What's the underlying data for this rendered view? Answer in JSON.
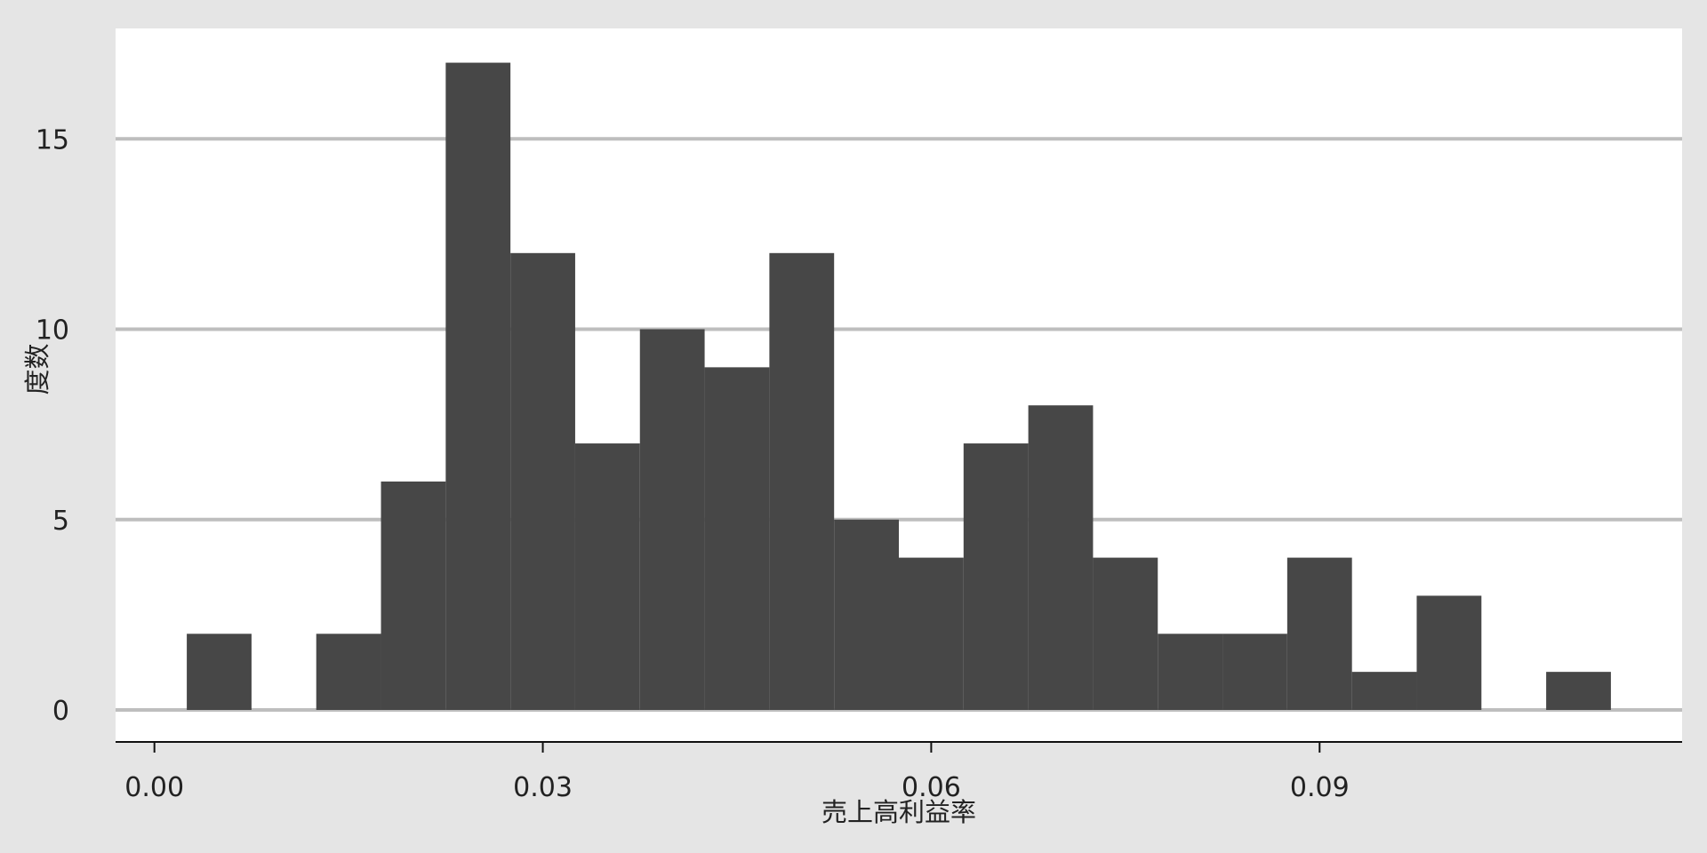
{
  "chart_data": {
    "type": "bar",
    "subtype": "histogram",
    "xlabel": "売上高利益率",
    "ylabel": "度数",
    "bin_width": 0.005,
    "bins": [
      {
        "start": 0.0025,
        "end": 0.0075,
        "count": 2
      },
      {
        "start": 0.0125,
        "end": 0.0175,
        "count": 2
      },
      {
        "start": 0.0175,
        "end": 0.0225,
        "count": 6
      },
      {
        "start": 0.0225,
        "end": 0.0275,
        "count": 17
      },
      {
        "start": 0.0275,
        "end": 0.0325,
        "count": 12
      },
      {
        "start": 0.0325,
        "end": 0.0375,
        "count": 7
      },
      {
        "start": 0.0375,
        "end": 0.0425,
        "count": 10
      },
      {
        "start": 0.0425,
        "end": 0.0475,
        "count": 9
      },
      {
        "start": 0.0475,
        "end": 0.0525,
        "count": 12
      },
      {
        "start": 0.0525,
        "end": 0.0575,
        "count": 5
      },
      {
        "start": 0.0575,
        "end": 0.0625,
        "count": 4
      },
      {
        "start": 0.0625,
        "end": 0.0675,
        "count": 7
      },
      {
        "start": 0.0675,
        "end": 0.0725,
        "count": 8
      },
      {
        "start": 0.0725,
        "end": 0.0775,
        "count": 4
      },
      {
        "start": 0.0775,
        "end": 0.0825,
        "count": 2
      },
      {
        "start": 0.0825,
        "end": 0.0875,
        "count": 2
      },
      {
        "start": 0.0875,
        "end": 0.0925,
        "count": 4
      },
      {
        "start": 0.0925,
        "end": 0.0975,
        "count": 1
      },
      {
        "start": 0.0975,
        "end": 0.1025,
        "count": 3
      },
      {
        "start": 0.1075,
        "end": 0.1125,
        "count": 1
      }
    ],
    "xticks": [
      "0.00",
      "0.03",
      "0.06",
      "0.09"
    ],
    "yticks": [
      "0",
      "5",
      "10",
      "15"
    ],
    "xlim": [
      -0.003,
      0.118
    ],
    "ylim": [
      0,
      17.9
    ],
    "grid": "horizontal",
    "colors": {
      "bar": "#474747",
      "panel": "#ffffff",
      "background": "#e5e5e5",
      "grid": "#bebebe"
    }
  }
}
